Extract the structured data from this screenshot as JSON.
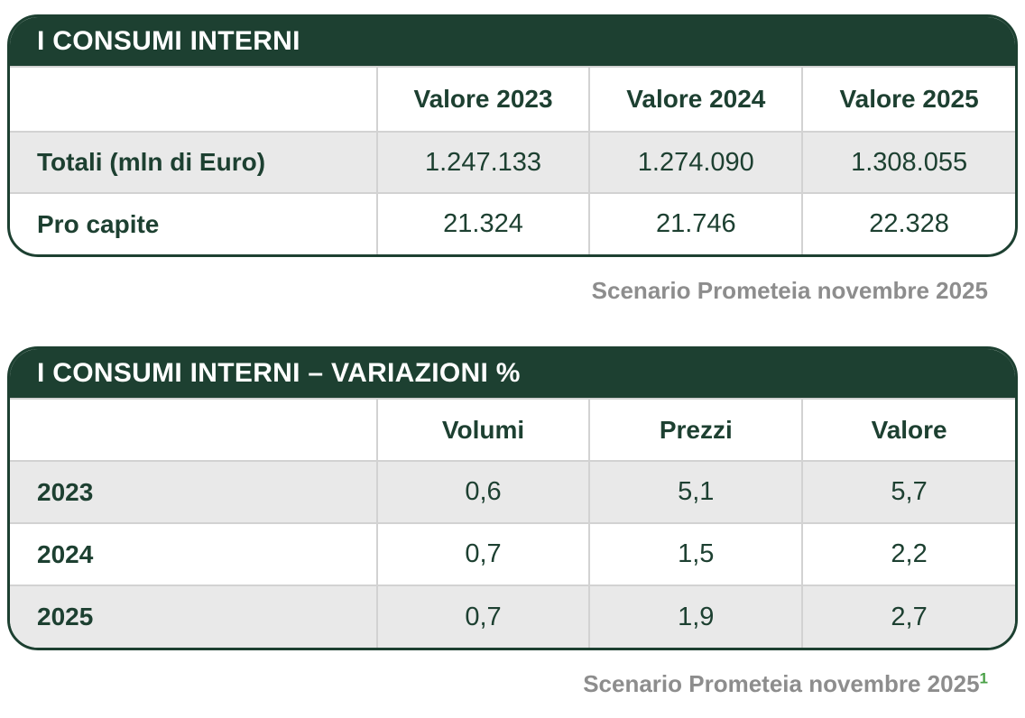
{
  "colors": {
    "table_green": "#1d4031",
    "row_alt_gray": "#e9e9e9",
    "grid_border": "#d2d2d2",
    "caption_gray": "#8d8d8d",
    "footnote_green": "#4aa147"
  },
  "table1": {
    "title": "I CONSUMI INTERNI",
    "columns": [
      "Valore 2023",
      "Valore 2024",
      "Valore 2025"
    ],
    "rows": [
      {
        "label": "Totali (mln di Euro)",
        "values": [
          "1.247.133",
          "1.274.090",
          "1.308.055"
        ]
      },
      {
        "label": "Pro capite",
        "values": [
          "21.324",
          "21.746",
          "22.328"
        ]
      }
    ],
    "caption": "Scenario Prometeia novembre 2025"
  },
  "table2": {
    "title": "I CONSUMI INTERNI – VARIAZIONI %",
    "columns": [
      "Volumi",
      "Prezzi",
      "Valore"
    ],
    "rows": [
      {
        "label": "2023",
        "values": [
          "0,6",
          "5,1",
          "5,7"
        ]
      },
      {
        "label": "2024",
        "values": [
          "0,7",
          "1,5",
          "2,2"
        ]
      },
      {
        "label": "2025",
        "values": [
          "0,7",
          "1,9",
          "2,7"
        ]
      }
    ],
    "caption": "Scenario Prometeia novembre 2025",
    "caption_footnote": "1"
  },
  "chart_data": [
    {
      "type": "table",
      "title": "I CONSUMI INTERNI",
      "columns": [
        "Valore 2023",
        "Valore 2024",
        "Valore 2025"
      ],
      "series": [
        {
          "name": "Totali (mln di Euro)",
          "values": [
            1247133,
            1274090,
            1308055
          ]
        },
        {
          "name": "Pro capite",
          "values": [
            21324,
            21746,
            22328
          ]
        }
      ]
    },
    {
      "type": "table",
      "title": "I CONSUMI INTERNI – VARIAZIONI %",
      "columns": [
        "Volumi",
        "Prezzi",
        "Valore"
      ],
      "series": [
        {
          "name": "2023",
          "values": [
            0.6,
            5.1,
            5.7
          ]
        },
        {
          "name": "2024",
          "values": [
            0.7,
            1.5,
            2.2
          ]
        },
        {
          "name": "2025",
          "values": [
            0.7,
            1.9,
            2.7
          ]
        }
      ]
    }
  ]
}
